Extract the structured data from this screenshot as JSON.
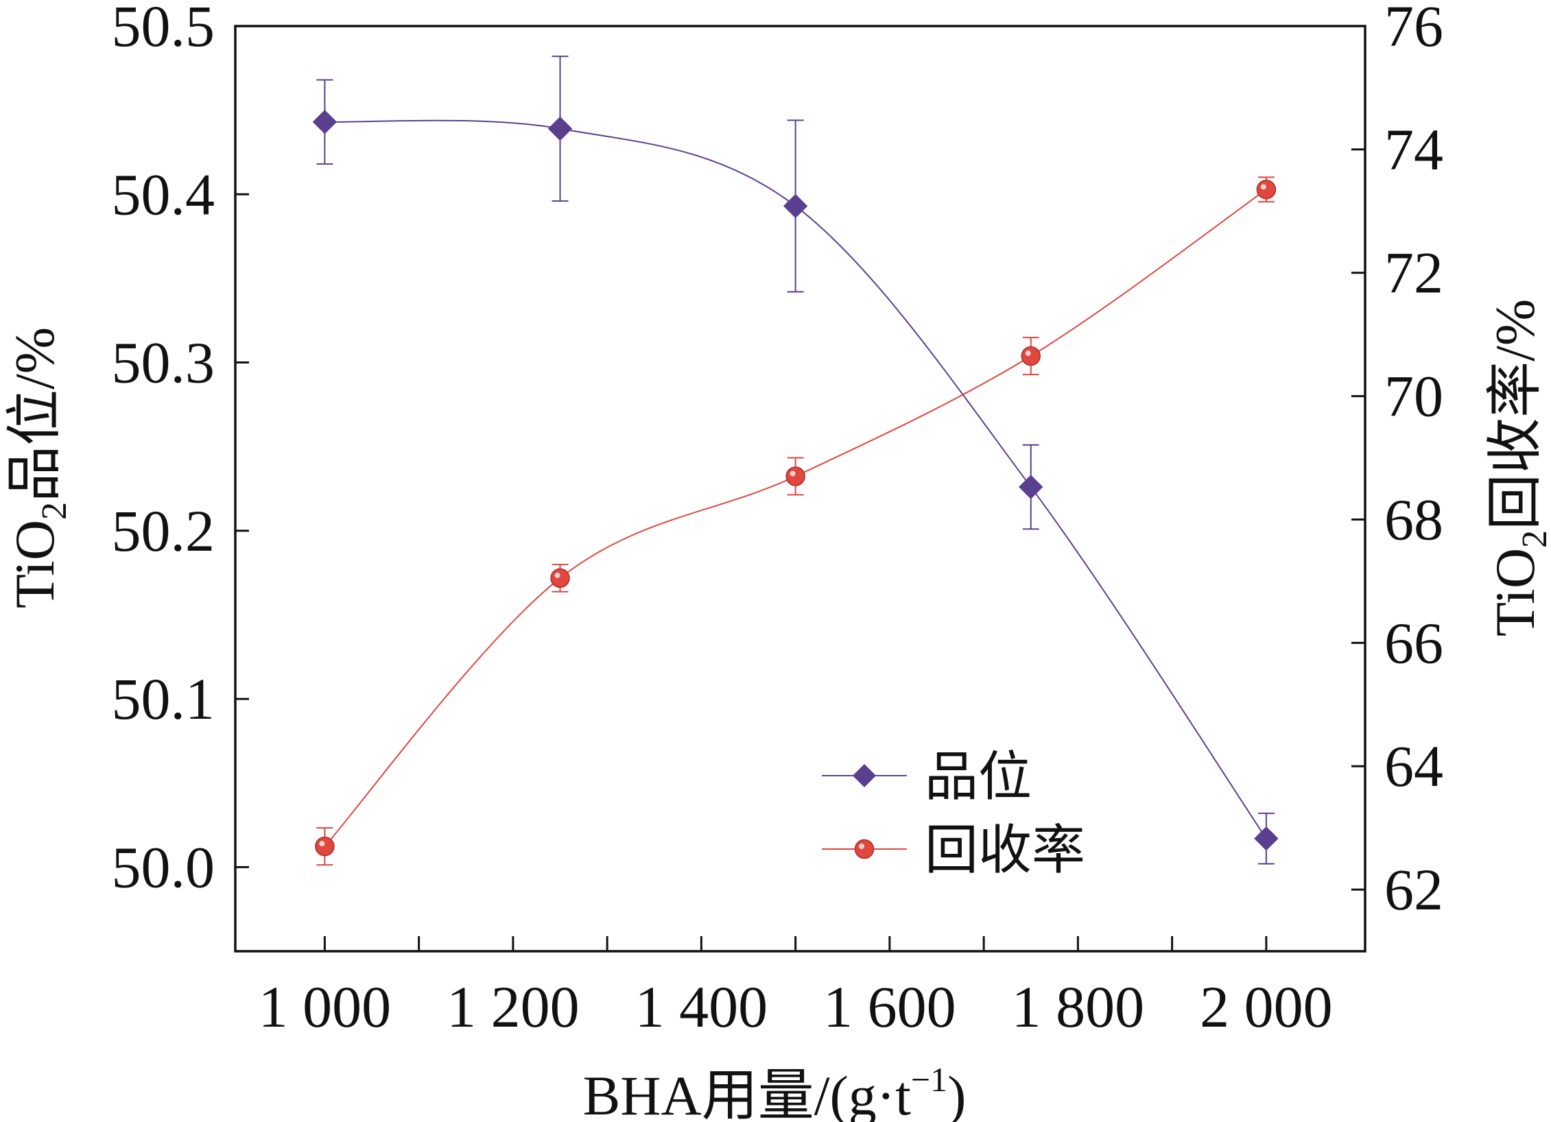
{
  "chart_data": {
    "type": "line",
    "xlabel": "BHA用量/(g·t",
    "xlabel_sup": "−1",
    "xlabel_close": ")",
    "ylabel_left": {
      "pre": "TiO",
      "sub": "2",
      "post": "品位/%"
    },
    "ylabel_right": {
      "pre": "TiO",
      "sub": "2",
      "post": "回收率/%"
    },
    "x_ticks": [
      1000,
      1200,
      1400,
      1600,
      1800,
      2000
    ],
    "x_tick_labels": [
      "1 000",
      "1 200",
      "1 400",
      "1 600",
      "1 800",
      "2 000"
    ],
    "x_minor_ticks": [
      1100,
      1300,
      1500,
      1700,
      1900
    ],
    "xlim": [
      905,
      2105
    ],
    "y_left_ticks": [
      50.0,
      50.1,
      50.2,
      50.3,
      50.4,
      50.5
    ],
    "y_left_tick_labels": [
      "50.0",
      "50.1",
      "50.2",
      "50.3",
      "50.4",
      "50.5"
    ],
    "y_left_lim": [
      49.95,
      50.5
    ],
    "y_right_ticks": [
      62,
      64,
      66,
      68,
      70,
      72,
      74,
      76
    ],
    "y_right_tick_labels": [
      "62",
      "64",
      "66",
      "68",
      "70",
      "72",
      "74",
      "76"
    ],
    "y_right_lim": [
      61.0,
      76.0
    ],
    "x": [
      1000,
      1250,
      1500,
      1750,
      2000
    ],
    "series": [
      {
        "name": "品位",
        "axis": "left",
        "color": "#5b3f8f",
        "marker": "diamond",
        "values": [
          50.443,
          50.439,
          50.393,
          50.226,
          50.017
        ],
        "errors": [
          0.025,
          0.043,
          0.051,
          0.025,
          0.015
        ]
      },
      {
        "name": "回收率",
        "axis": "right",
        "color": "#e0473f",
        "marker": "circle",
        "values": [
          62.7,
          67.05,
          68.7,
          70.65,
          73.35
        ],
        "errors": [
          0.3,
          0.22,
          0.3,
          0.3,
          0.2
        ]
      }
    ],
    "legend_position": "lower-right"
  }
}
